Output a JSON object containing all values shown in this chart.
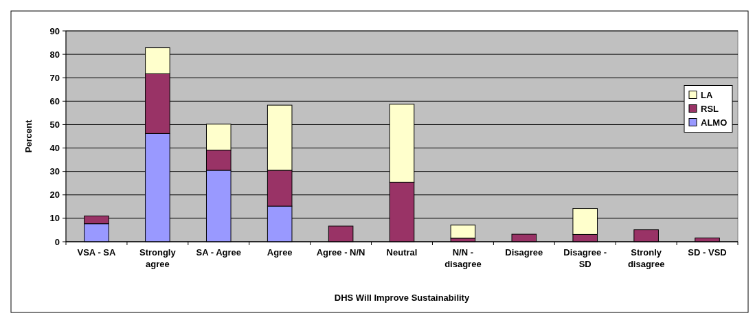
{
  "chart_data": {
    "type": "bar",
    "stacked": true,
    "xlabel": "DHS Will Improve Sustainability",
    "ylabel": "Percent",
    "categories": [
      "VSA - SA",
      "Strongly agree",
      "SA - Agree",
      "Agree",
      "Agree - N/N",
      "Neutral",
      "N/N - disagree",
      "Disagree",
      "Disagree - SD",
      "Stronly disagree",
      "SD - VSD"
    ],
    "series": [
      {
        "name": "ALMO",
        "color": "#9999ff",
        "values": [
          7.7,
          46.2,
          30.5,
          15.2,
          0,
          0,
          0,
          0,
          0,
          0,
          0
        ]
      },
      {
        "name": "RSL",
        "color": "#993366",
        "values": [
          3.3,
          25.5,
          8.6,
          15.3,
          6.7,
          25.4,
          1.5,
          3.2,
          3.1,
          5.1,
          1.6
        ]
      },
      {
        "name": "LA",
        "color": "#ffffcc",
        "values": [
          0,
          11.1,
          11.1,
          27.8,
          0,
          33.3,
          5.6,
          0,
          11.1,
          0,
          0
        ]
      }
    ],
    "ylim": [
      0,
      90
    ],
    "yticks": [
      0,
      10,
      20,
      30,
      40,
      50,
      60,
      70,
      80,
      90
    ],
    "grid": "y",
    "legend": "right"
  }
}
